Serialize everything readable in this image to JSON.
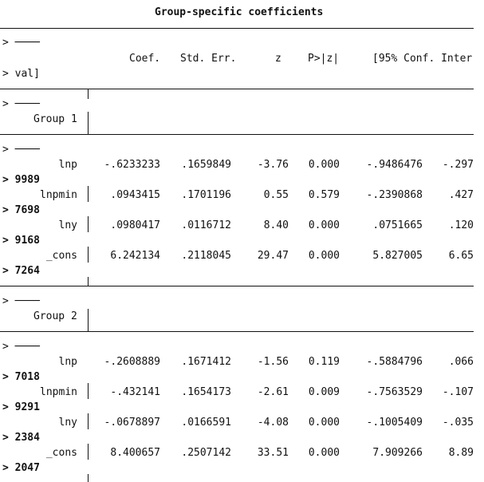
{
  "title": "Group-specific coefficients",
  "prompt_markers": {
    "header_dash": "> ────",
    "header_val": "> val]",
    "g1_dash_a": "> ────",
    "g1_dash_b": "> ────",
    "g2_dash_a": "> ────",
    "g2_dash_b": "> ────"
  },
  "columns": {
    "coef": "Coef.",
    "se": "Std. Err.",
    "z": "z",
    "p": "P>|z|",
    "ci": "[95% Conf. Inter"
  },
  "groups": [
    {
      "label": "Group 1",
      "rows": [
        {
          "name": "lnp",
          "coef": "-.6233233",
          "se": ".1659849",
          "z": "-3.76",
          "p": "0.000",
          "lo": "-.9486476",
          "hi": "-.297",
          "cont": "> 9989"
        },
        {
          "name": "lnpmin",
          "coef": ".0943415",
          "se": ".1701196",
          "z": "0.55",
          "p": "0.579",
          "lo": "-.2390868",
          "hi": ".427",
          "cont": "> 7698"
        },
        {
          "name": "lny",
          "coef": ".0980417",
          "se": ".0116712",
          "z": "8.40",
          "p": "0.000",
          "lo": ".0751665",
          "hi": ".120",
          "cont": "> 9168"
        },
        {
          "name": "_cons",
          "coef": "6.242134",
          "se": ".2118045",
          "z": "29.47",
          "p": "0.000",
          "lo": "5.827005",
          "hi": "6.65",
          "cont": "> 7264"
        }
      ]
    },
    {
      "label": "Group 2",
      "rows": [
        {
          "name": "lnp",
          "coef": "-.2608889",
          "se": ".1671412",
          "z": "-1.56",
          "p": "0.119",
          "lo": "-.5884796",
          "hi": ".066",
          "cont": "> 7018"
        },
        {
          "name": "lnpmin",
          "coef": "-.432141",
          "se": ".1654173",
          "z": "-2.61",
          "p": "0.009",
          "lo": "-.7563529",
          "hi": "-.107",
          "cont": "> 9291"
        },
        {
          "name": "lny",
          "coef": "-.0678897",
          "se": ".0166591",
          "z": "-4.08",
          "p": "0.000",
          "lo": "-.1005409",
          "hi": "-.035",
          "cont": "> 2384"
        },
        {
          "name": "_cons",
          "coef": "8.400657",
          "se": ".2507142",
          "z": "33.51",
          "p": "0.000",
          "lo": "7.909266",
          "hi": "8.89",
          "cont": "> 2047"
        }
      ]
    }
  ]
}
